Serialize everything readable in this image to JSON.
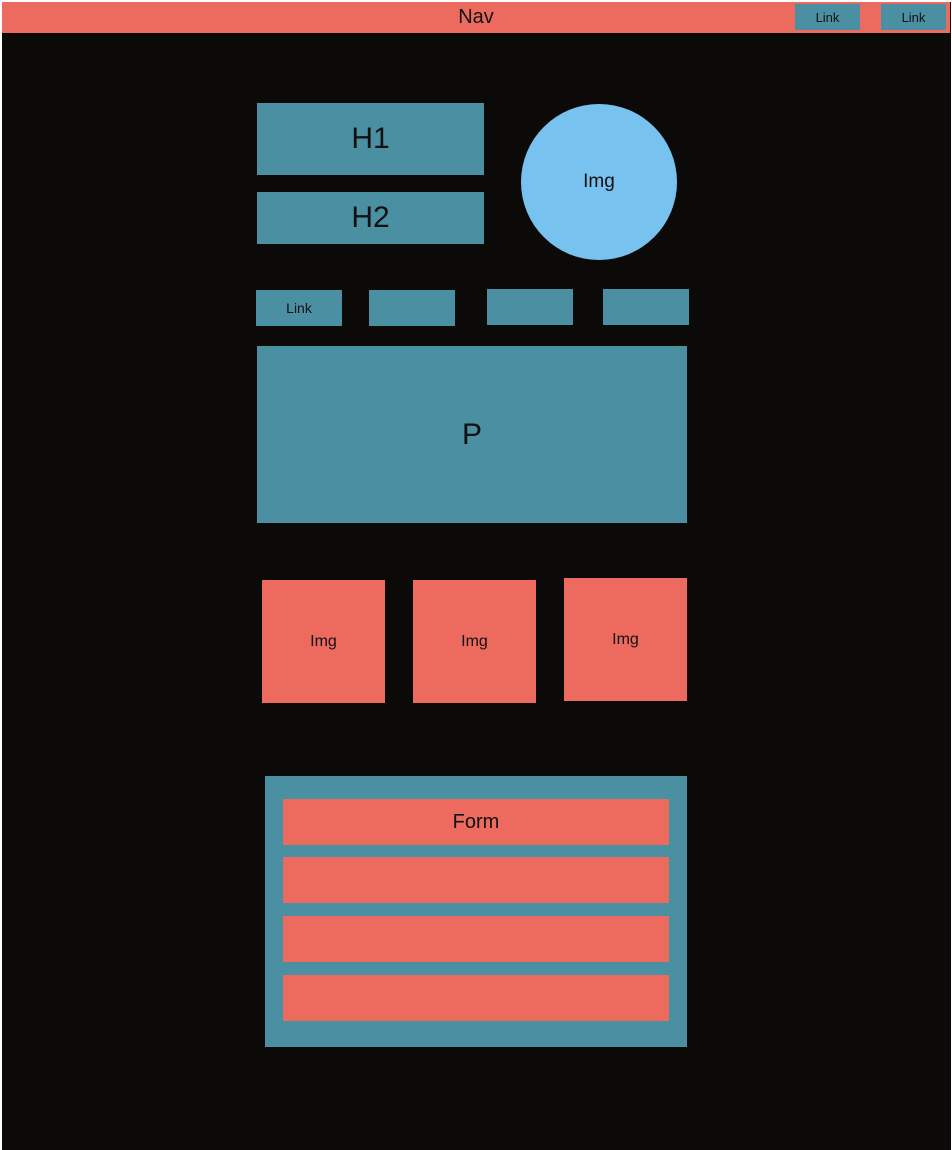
{
  "nav": {
    "label": "Nav",
    "links": [
      "Link",
      "Link"
    ]
  },
  "header": {
    "h1": "H1",
    "h2": "H2",
    "image": "Img"
  },
  "links": {
    "first": "Link",
    "second": "",
    "third": "",
    "fourth": ""
  },
  "paragraph": "P",
  "gallery": [
    "Img",
    "Img",
    "Img"
  ],
  "form": {
    "title": "Form",
    "fields": [
      "",
      "",
      ""
    ]
  },
  "colors": {
    "background": "#0c0a09",
    "teal": "#4a90a2",
    "coral": "#ec6b5e",
    "blue": "#78c2f0"
  }
}
